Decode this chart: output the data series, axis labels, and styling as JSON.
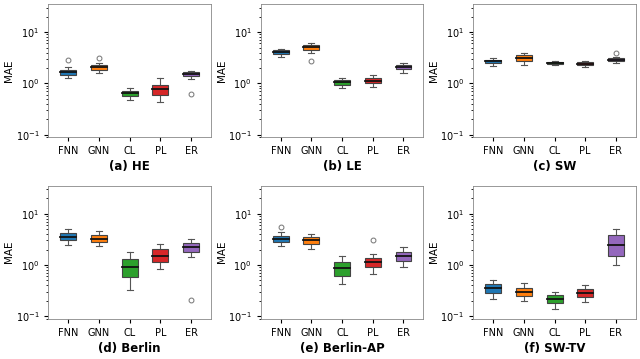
{
  "subplots": [
    {
      "label": "(a) HE",
      "ylim": [
        0.09,
        35
      ],
      "boxes": [
        {
          "color": "#1f77b4",
          "Q1": 1.45,
          "median": 1.65,
          "Q3": 1.85,
          "whisker_low": 1.25,
          "whisker_high": 2.05,
          "fliers_above": [
            2.9
          ],
          "fliers_below": []
        },
        {
          "color": "#ff7f0e",
          "Q1": 1.85,
          "median": 2.05,
          "Q3": 2.25,
          "whisker_low": 1.58,
          "whisker_high": 2.45,
          "fliers_above": [
            3.1
          ],
          "fliers_below": []
        },
        {
          "color": "#2ca02c",
          "Q1": 0.56,
          "median": 0.64,
          "Q3": 0.72,
          "whisker_low": 0.47,
          "whisker_high": 0.8,
          "fliers_above": [],
          "fliers_below": []
        },
        {
          "color": "#d62728",
          "Q1": 0.6,
          "median": 0.78,
          "Q3": 0.95,
          "whisker_low": 0.44,
          "whisker_high": 1.28,
          "fliers_above": [],
          "fliers_below": []
        },
        {
          "color": "#9467bd",
          "Q1": 1.4,
          "median": 1.53,
          "Q3": 1.65,
          "whisker_low": 1.22,
          "whisker_high": 1.75,
          "fliers_above": [],
          "fliers_below": [
            0.63
          ]
        }
      ]
    },
    {
      "label": "(b) LE",
      "ylim": [
        0.09,
        35
      ],
      "boxes": [
        {
          "color": "#1f77b4",
          "Q1": 3.8,
          "median": 4.1,
          "Q3": 4.45,
          "whisker_low": 3.3,
          "whisker_high": 4.75,
          "fliers_above": [],
          "fliers_below": []
        },
        {
          "color": "#ff7f0e",
          "Q1": 4.55,
          "median": 5.05,
          "Q3": 5.55,
          "whisker_low": 3.85,
          "whisker_high": 6.25,
          "fliers_above": [],
          "fliers_below": [
            2.75
          ]
        },
        {
          "color": "#2ca02c",
          "Q1": 0.95,
          "median": 1.05,
          "Q3": 1.15,
          "whisker_low": 0.8,
          "whisker_high": 1.26,
          "fliers_above": [],
          "fliers_below": []
        },
        {
          "color": "#d62728",
          "Q1": 1.0,
          "median": 1.12,
          "Q3": 1.26,
          "whisker_low": 0.85,
          "whisker_high": 1.46,
          "fliers_above": [],
          "fliers_below": []
        },
        {
          "color": "#9467bd",
          "Q1": 1.9,
          "median": 2.1,
          "Q3": 2.3,
          "whisker_low": 1.6,
          "whisker_high": 2.5,
          "fliers_above": [],
          "fliers_below": []
        }
      ]
    },
    {
      "label": "(c) SW",
      "ylim": [
        0.09,
        35
      ],
      "boxes": [
        {
          "color": "#1f77b4",
          "Q1": 2.5,
          "median": 2.7,
          "Q3": 2.9,
          "whisker_low": 2.2,
          "whisker_high": 3.1,
          "fliers_above": [],
          "fliers_below": []
        },
        {
          "color": "#ff7f0e",
          "Q1": 2.75,
          "median": 3.1,
          "Q3": 3.55,
          "whisker_low": 2.25,
          "whisker_high": 3.95,
          "fliers_above": [],
          "fliers_below": []
        },
        {
          "color": "#2ca02c",
          "Q1": 2.37,
          "median": 2.49,
          "Q3": 2.59,
          "whisker_low": 2.27,
          "whisker_high": 2.7,
          "fliers_above": [],
          "fliers_below": []
        },
        {
          "color": "#d62728",
          "Q1": 2.3,
          "median": 2.44,
          "Q3": 2.56,
          "whisker_low": 2.12,
          "whisker_high": 2.69,
          "fliers_above": [],
          "fliers_below": []
        },
        {
          "color": "#9467bd",
          "Q1": 2.72,
          "median": 2.9,
          "Q3": 3.1,
          "whisker_low": 2.52,
          "whisker_high": 3.3,
          "fliers_above": [
            3.85
          ],
          "fliers_below": []
        }
      ]
    },
    {
      "label": "(d) Berlin",
      "ylim": [
        0.09,
        35
      ],
      "boxes": [
        {
          "color": "#1f77b4",
          "Q1": 3.0,
          "median": 3.55,
          "Q3": 4.2,
          "whisker_low": 2.5,
          "whisker_high": 5.05,
          "fliers_above": [],
          "fliers_below": []
        },
        {
          "color": "#ff7f0e",
          "Q1": 2.82,
          "median": 3.22,
          "Q3": 3.82,
          "whisker_low": 2.32,
          "whisker_high": 4.52,
          "fliers_above": [],
          "fliers_below": []
        },
        {
          "color": "#2ca02c",
          "Q1": 0.58,
          "median": 0.92,
          "Q3": 1.32,
          "whisker_low": 0.32,
          "whisker_high": 1.82,
          "fliers_above": [],
          "fliers_below": []
        },
        {
          "color": "#d62728",
          "Q1": 1.12,
          "median": 1.52,
          "Q3": 2.02,
          "whisker_low": 0.82,
          "whisker_high": 2.62,
          "fliers_above": [],
          "fliers_below": []
        },
        {
          "color": "#9467bd",
          "Q1": 1.82,
          "median": 2.22,
          "Q3": 2.72,
          "whisker_low": 1.42,
          "whisker_high": 3.22,
          "fliers_above": [],
          "fliers_below": [
            0.21
          ]
        }
      ]
    },
    {
      "label": "(e) Berlin-AP",
      "ylim": [
        0.09,
        35
      ],
      "boxes": [
        {
          "color": "#1f77b4",
          "Q1": 2.8,
          "median": 3.2,
          "Q3": 3.72,
          "whisker_low": 2.32,
          "whisker_high": 4.32,
          "fliers_above": [
            5.5
          ],
          "fliers_below": []
        },
        {
          "color": "#ff7f0e",
          "Q1": 2.52,
          "median": 3.02,
          "Q3": 3.52,
          "whisker_low": 2.02,
          "whisker_high": 4.02,
          "fliers_above": [],
          "fliers_below": []
        },
        {
          "color": "#2ca02c",
          "Q1": 0.62,
          "median": 0.87,
          "Q3": 1.12,
          "whisker_low": 0.42,
          "whisker_high": 1.52,
          "fliers_above": [],
          "fliers_below": []
        },
        {
          "color": "#d62728",
          "Q1": 0.92,
          "median": 1.12,
          "Q3": 1.37,
          "whisker_low": 0.67,
          "whisker_high": 1.67,
          "fliers_above": [
            3.05
          ],
          "fliers_below": []
        },
        {
          "color": "#9467bd",
          "Q1": 1.22,
          "median": 1.52,
          "Q3": 1.82,
          "whisker_low": 0.92,
          "whisker_high": 2.22,
          "fliers_above": [],
          "fliers_below": []
        }
      ]
    },
    {
      "label": "(f) SW-TV",
      "ylim": [
        0.09,
        35
      ],
      "boxes": [
        {
          "color": "#1f77b4",
          "Q1": 0.28,
          "median": 0.35,
          "Q3": 0.42,
          "whisker_low": 0.22,
          "whisker_high": 0.5,
          "fliers_above": [],
          "fliers_below": []
        },
        {
          "color": "#ff7f0e",
          "Q1": 0.25,
          "median": 0.3,
          "Q3": 0.36,
          "whisker_low": 0.2,
          "whisker_high": 0.44,
          "fliers_above": [],
          "fliers_below": []
        },
        {
          "color": "#2ca02c",
          "Q1": 0.18,
          "median": 0.22,
          "Q3": 0.26,
          "whisker_low": 0.14,
          "whisker_high": 0.3,
          "fliers_above": [],
          "fliers_below": []
        },
        {
          "color": "#d62728",
          "Q1": 0.24,
          "median": 0.28,
          "Q3": 0.34,
          "whisker_low": 0.19,
          "whisker_high": 0.4,
          "fliers_above": [],
          "fliers_below": []
        },
        {
          "color": "#9467bd",
          "Q1": 1.5,
          "median": 2.5,
          "Q3": 3.8,
          "whisker_low": 1.0,
          "whisker_high": 5.0,
          "fliers_above": [],
          "fliers_below": []
        }
      ]
    }
  ],
  "categories": [
    "FNN",
    "GNN",
    "CL",
    "PL",
    "ER"
  ],
  "ylabel": "MAE",
  "box_width": 0.52,
  "linewidth": 0.8,
  "flier_size": 3.5,
  "cap_ratio": 0.38,
  "tick_fontsize": 7,
  "label_fontsize": 8.5,
  "ylabel_fontsize": 7.5
}
